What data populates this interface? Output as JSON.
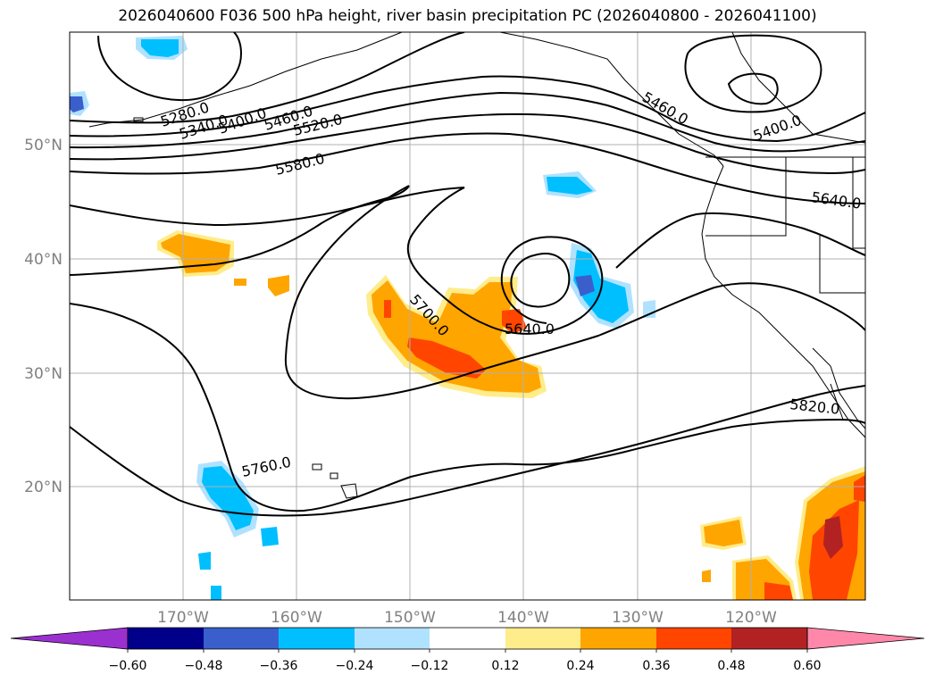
{
  "title": "2026040600 F036 500 hPa height, river basin precipitation PC (2026040800 - 2026041100)",
  "map": {
    "lat_labels": [
      "50°N",
      "40°N",
      "30°N",
      "20°N"
    ],
    "lon_labels": [
      "170°W",
      "160°W",
      "150°W",
      "140°W",
      "130°W",
      "120°W"
    ],
    "contour_labels": [
      "5280.0",
      "5340.0",
      "5400.0",
      "5460.0",
      "5520.0",
      "5580.0",
      "5460.0",
      "5400.0",
      "5640.0",
      "5700.0",
      "5640.0",
      "5760.0",
      "5820.0"
    ],
    "colors": {
      "contour": "#000000",
      "grid": "#b0b0b0",
      "coast": "#000000"
    }
  },
  "colorbar": {
    "ticks": [
      "−0.60",
      "−0.48",
      "−0.36",
      "−0.24",
      "−0.12",
      "0.12",
      "0.24",
      "0.36",
      "0.48",
      "0.60"
    ],
    "colors": [
      "#9b30d0",
      "#00008b",
      "#3a5fcd",
      "#00bfff",
      "#b0e2ff",
      "#ffffff",
      "#ffec8b",
      "#ffa500",
      "#ff4500",
      "#b22222",
      "#ff88aa"
    ]
  }
}
